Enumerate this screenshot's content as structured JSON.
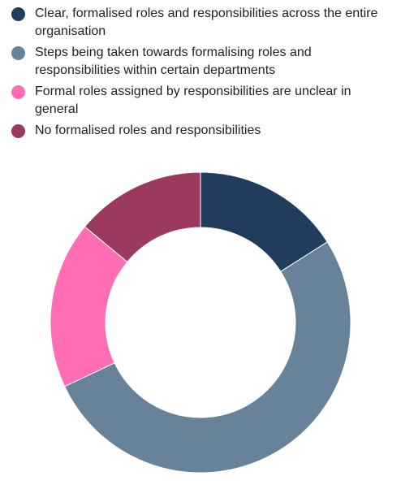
{
  "chart_data": {
    "type": "pie",
    "donut": true,
    "title": "",
    "legend_position": "top",
    "categories": [
      "Clear, formalised roles and responsibilities across the entire organisation",
      "Steps being taken towards formalising roles and responsibilities within certain departments",
      "Formal roles assigned by responsibilities are unclear in general",
      "No formalised roles and responsibilities"
    ],
    "values": [
      16,
      52,
      18,
      14
    ],
    "colors": [
      "#213d5b",
      "#688299",
      "#ff6eb4",
      "#9b395e"
    ]
  }
}
